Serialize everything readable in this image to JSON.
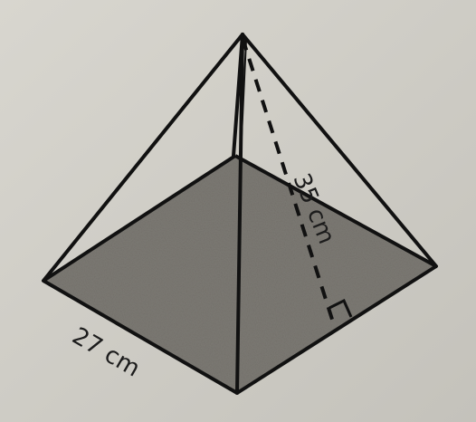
{
  "diagram": {
    "shape": "square pyramid",
    "base_edge_label": "27 cm",
    "slant_height_label": "35 cm",
    "right_angle_marker": true,
    "colors": {
      "paper": "#cfcdc6",
      "shaded_base": "#7d7a74",
      "ink": "#111111"
    }
  }
}
